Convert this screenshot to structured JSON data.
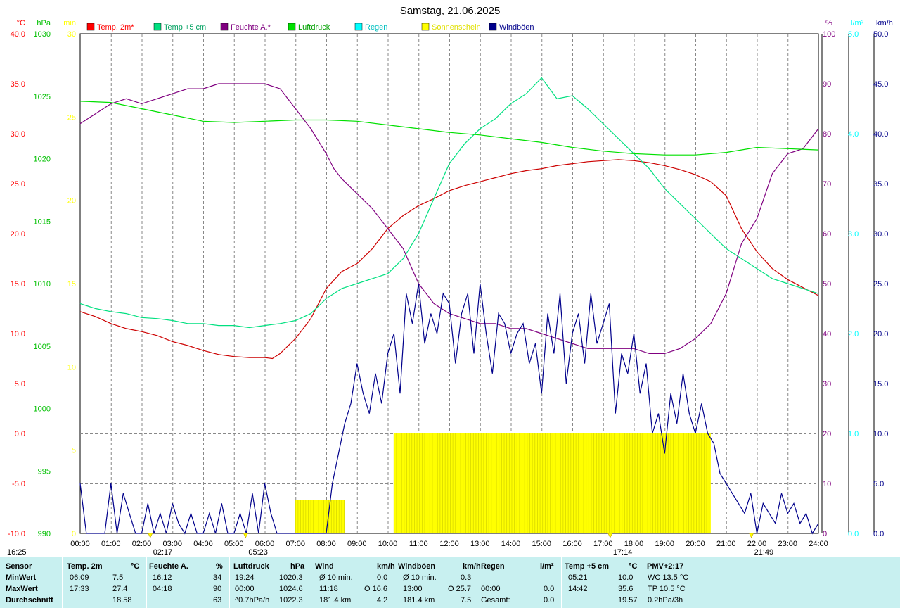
{
  "chart_data": {
    "type": "line",
    "title": "Samstag, 21.06.2025",
    "x_ticks": [
      "00:00",
      "01:00",
      "02:00",
      "03:00",
      "04:00",
      "05:00",
      "06:00",
      "07:00",
      "08:00",
      "09:00",
      "10:00",
      "11:00",
      "12:00",
      "13:00",
      "14:00",
      "15:00",
      "16:00",
      "17:00",
      "18:00",
      "19:00",
      "20:00",
      "21:00",
      "22:00",
      "23:00",
      "24:00"
    ],
    "xlim": [
      0,
      24
    ],
    "grid": true,
    "legend_position": "top",
    "axes": {
      "temp": {
        "unit": "°C",
        "color": "#ff0000",
        "min": -10,
        "max": 40,
        "ticks": [
          "40.0",
          "35.0",
          "30.0",
          "25.0",
          "20.0",
          "15.0",
          "10.0",
          "5.0",
          "0.0",
          "-5.0",
          "-10.0"
        ]
      },
      "press": {
        "unit": "hPa",
        "color": "#00c000",
        "min": 990,
        "max": 1030,
        "ticks": [
          "1030",
          "1025",
          "1020",
          "1015",
          "1010",
          "1005",
          "1000",
          "995",
          "990"
        ]
      },
      "sun": {
        "unit": "min",
        "color": "#ffff00",
        "min": 0,
        "max": 30,
        "ticks": [
          "30",
          "25",
          "20",
          "15",
          "10",
          "5",
          "0"
        ]
      },
      "hum": {
        "unit": "%",
        "color": "#800080",
        "min": 0,
        "max": 100,
        "ticks": [
          "100",
          "90",
          "80",
          "70",
          "60",
          "50",
          "40",
          "30",
          "20",
          "10",
          "0"
        ]
      },
      "rain": {
        "unit": "l/m²",
        "color": "#00ffff",
        "min": 0,
        "max": 5,
        "ticks": [
          "5.0",
          "4.0",
          "3.0",
          "2.0",
          "1.0",
          "0.0"
        ]
      },
      "wind": {
        "unit": "km/h",
        "color": "#00008b",
        "min": 0,
        "max": 50,
        "ticks": [
          "50.0",
          "45.0",
          "40.0",
          "35.0",
          "30.0",
          "25.0",
          "20.0",
          "15.0",
          "10.0",
          "5.0",
          "0.0"
        ]
      }
    },
    "legend": [
      {
        "label": "Temp. 2m*",
        "color": "#ff0000",
        "text_color": "#ff0000"
      },
      {
        "label": "Temp +5 cm",
        "color": "#00e080",
        "text_color": "#00a060"
      },
      {
        "label": "Feuchte A.*",
        "color": "#800080",
        "text_color": "#800080"
      },
      {
        "label": "Luftdruck",
        "color": "#00e000",
        "text_color": "#00a000"
      },
      {
        "label": "Regen",
        "color": "#00ffff",
        "text_color": "#00c0c0"
      },
      {
        "label": "Sonnenschein",
        "color": "#ffff00",
        "text_color": "#e0e000"
      },
      {
        "label": "Windböen",
        "color": "#00008b",
        "text_color": "#00008b"
      }
    ],
    "series": [
      {
        "name": "Temp. 2m*",
        "axis": "temp",
        "color": "#cc0000",
        "x": [
          0,
          0.5,
          1,
          1.5,
          2,
          2.5,
          3,
          3.5,
          4,
          4.5,
          5,
          5.5,
          6,
          6.25,
          6.5,
          7,
          7.5,
          8,
          8.5,
          9,
          9.5,
          10,
          10.5,
          11,
          11.5,
          12,
          12.5,
          13,
          13.5,
          14,
          14.5,
          15,
          15.5,
          16,
          16.5,
          17,
          17.5,
          18,
          18.5,
          19,
          19.5,
          20,
          20.5,
          21,
          21.5,
          22,
          22.5,
          23,
          23.5,
          24
        ],
        "y": [
          12.2,
          11.7,
          11.0,
          10.5,
          10.2,
          9.8,
          9.2,
          8.8,
          8.3,
          7.9,
          7.7,
          7.6,
          7.6,
          7.5,
          8.0,
          9.5,
          11.5,
          14.5,
          16.2,
          17.0,
          18.5,
          20.5,
          21.8,
          22.8,
          23.5,
          24.3,
          24.8,
          25.2,
          25.6,
          26.0,
          26.3,
          26.5,
          26.8,
          27.0,
          27.2,
          27.3,
          27.4,
          27.3,
          27.1,
          26.8,
          26.4,
          25.9,
          25.2,
          23.8,
          20.5,
          18.2,
          16.5,
          15.4,
          14.6,
          13.8
        ]
      },
      {
        "name": "Temp +5 cm",
        "axis": "temp",
        "color": "#00e080",
        "x": [
          0,
          0.5,
          1,
          1.5,
          2,
          2.5,
          3,
          3.5,
          4,
          4.5,
          5,
          5.5,
          6,
          6.5,
          7,
          7.5,
          8,
          8.5,
          9,
          9.5,
          10,
          10.5,
          11,
          11.5,
          12,
          12.5,
          13,
          13.5,
          14,
          14.5,
          15,
          15.5,
          16,
          16.5,
          17,
          17.5,
          18,
          18.5,
          19,
          19.5,
          20,
          20.5,
          21,
          21.5,
          22,
          22.5,
          23,
          23.5,
          24
        ],
        "y": [
          13.0,
          12.5,
          12.2,
          12.0,
          11.6,
          11.5,
          11.3,
          11.0,
          11.0,
          10.8,
          10.8,
          10.6,
          10.8,
          11.0,
          11.3,
          12.0,
          13.5,
          14.5,
          15.0,
          15.5,
          16.0,
          17.5,
          20.0,
          23.5,
          27.0,
          29.0,
          30.5,
          31.5,
          33.0,
          34.0,
          35.6,
          33.5,
          33.8,
          32.5,
          31.0,
          29.5,
          28.0,
          26.5,
          24.5,
          23.0,
          21.5,
          20.0,
          18.5,
          17.5,
          16.5,
          15.5,
          15.0,
          14.5,
          14.0
        ]
      },
      {
        "name": "Feuchte A.*",
        "axis": "hum",
        "color": "#800080",
        "x": [
          0,
          0.5,
          1,
          1.5,
          2,
          2.5,
          3,
          3.5,
          4,
          4.5,
          5,
          5.5,
          6,
          6.5,
          7,
          7.5,
          8,
          8.25,
          8.5,
          9,
          9.5,
          10,
          10.5,
          11,
          11.5,
          12,
          12.5,
          13,
          13.5,
          14,
          14.5,
          15,
          15.5,
          16,
          16.5,
          17,
          17.5,
          18,
          18.5,
          19,
          19.5,
          20,
          20.5,
          21,
          21.5,
          22,
          22.5,
          23,
          23.5,
          24
        ],
        "y": [
          82,
          84,
          86,
          87,
          86,
          87,
          88,
          89,
          89,
          90,
          90,
          90,
          90,
          89,
          85,
          81,
          76,
          73,
          71,
          68,
          65,
          61,
          57,
          50,
          46,
          44,
          43,
          42,
          42,
          41,
          41,
          40,
          39,
          38,
          37,
          37,
          37,
          37,
          36,
          36,
          37,
          39,
          42,
          48,
          58,
          63,
          72,
          76,
          77,
          81
        ]
      },
      {
        "name": "Luftdruck",
        "axis": "press",
        "color": "#00e000",
        "x": [
          0,
          1,
          2,
          3,
          4,
          5,
          6,
          7,
          8,
          9,
          10,
          11,
          12,
          13,
          14,
          15,
          16,
          17,
          18,
          19,
          20,
          21,
          22,
          23,
          24
        ],
        "y": [
          1024.6,
          1024.5,
          1024.0,
          1023.5,
          1023.0,
          1022.9,
          1023.0,
          1023.1,
          1023.1,
          1023.0,
          1022.7,
          1022.4,
          1022.1,
          1021.9,
          1021.6,
          1021.3,
          1020.9,
          1020.6,
          1020.4,
          1020.3,
          1020.3,
          1020.5,
          1020.9,
          1020.8,
          1020.7
        ]
      },
      {
        "name": "Windböen",
        "axis": "wind",
        "color": "#00008b",
        "x": [
          0,
          0.2,
          0.4,
          0.6,
          0.8,
          1,
          1.2,
          1.4,
          1.6,
          1.8,
          2,
          2.2,
          2.4,
          2.6,
          2.8,
          3,
          3.2,
          3.4,
          3.6,
          3.8,
          4,
          4.2,
          4.4,
          4.6,
          4.8,
          5,
          5.2,
          5.4,
          5.6,
          5.8,
          6,
          6.2,
          6.4,
          6.6,
          6.8,
          7,
          7.2,
          7.4,
          7.6,
          7.8,
          8,
          8.2,
          8.4,
          8.6,
          8.8,
          9,
          9.2,
          9.4,
          9.6,
          9.8,
          10,
          10.2,
          10.4,
          10.6,
          10.8,
          11,
          11.2,
          11.4,
          11.6,
          11.8,
          12,
          12.2,
          12.4,
          12.6,
          12.8,
          13,
          13.2,
          13.4,
          13.6,
          13.8,
          14,
          14.2,
          14.4,
          14.6,
          14.8,
          15,
          15.2,
          15.4,
          15.6,
          15.8,
          16,
          16.2,
          16.4,
          16.6,
          16.8,
          17,
          17.2,
          17.4,
          17.6,
          17.8,
          18,
          18.2,
          18.4,
          18.6,
          18.8,
          19,
          19.2,
          19.4,
          19.6,
          19.8,
          20,
          20.2,
          20.4,
          20.6,
          20.8,
          21,
          21.2,
          21.4,
          21.6,
          21.8,
          22,
          22.2,
          22.4,
          22.6,
          22.8,
          23,
          23.2,
          23.4,
          23.6,
          23.8,
          24
        ],
        "y": [
          5,
          0,
          0,
          0,
          0,
          5,
          0,
          4,
          2,
          0,
          0,
          3,
          0,
          2,
          0,
          3,
          1,
          0,
          2,
          0,
          0,
          2,
          0,
          3,
          0,
          0,
          2,
          0,
          4,
          0,
          5,
          2,
          0,
          0,
          0,
          0,
          0,
          0,
          0,
          0,
          0,
          5,
          8,
          11,
          13,
          17,
          14,
          12,
          16,
          13,
          18,
          20,
          14,
          24,
          21,
          25,
          19,
          22,
          20,
          24,
          23,
          17,
          22,
          24,
          18,
          25,
          20,
          16,
          22,
          21,
          18,
          20,
          21,
          17,
          19,
          14,
          22,
          18,
          24,
          15,
          20,
          22,
          17,
          24,
          19,
          21,
          23,
          12,
          18,
          16,
          20,
          14,
          17,
          10,
          12,
          8,
          14,
          11,
          16,
          12,
          10,
          13,
          10,
          9,
          6,
          5,
          4,
          3,
          2,
          4,
          0,
          3,
          2,
          1,
          4,
          2,
          3,
          1,
          2,
          0,
          1
        ]
      }
    ],
    "sunshine": {
      "name": "Sonnenschein",
      "axis": "sun",
      "blocks": [
        [
          7.0,
          8.6,
          2
        ],
        [
          10.2,
          20.5,
          6
        ]
      ]
    },
    "markers": [
      {
        "label": "02:17",
        "x": 2.28
      },
      {
        "label": "05:23",
        "x": 5.38
      },
      {
        "label": "17:14",
        "x": 17.23
      },
      {
        "label": "21:49",
        "x": 21.82
      }
    ],
    "corner_label": "16:25"
  },
  "stats": {
    "headers": [
      "Sensor",
      "Temp. 2m",
      "°C",
      "Feuchte A.",
      "%",
      "Luftdruck",
      "hPa",
      "Wind",
      "km/h",
      "Windböen",
      "km/h",
      "Regen",
      "l/m²",
      "Temp +5 cm",
      "°C",
      "PMV+2:17"
    ],
    "rows": [
      {
        "label": "MinWert",
        "t2_time": "06:09",
        "t2_val": "7.5",
        "h_time": "16:12",
        "h_val": "34",
        "p_time": "19:24",
        "p_val": "1020.3",
        "w_label": "Ø 10 min.",
        "w_val": "0.0",
        "g_label": "Ø 10 min.",
        "g_val": "0.3",
        "r_label": "",
        "r_val": "",
        "t5_time": "05:21",
        "t5_val": "10.0",
        "pmv": "WC 13.5 °C"
      },
      {
        "label": "MaxWert",
        "t2_time": "17:33",
        "t2_val": "27.4",
        "h_time": "04:18",
        "h_val": "90",
        "p_time": "00:00",
        "p_val": "1024.6",
        "w_label": "11:18",
        "w_dir": "O 16.6",
        "w_val": "",
        "g_label": "13:00",
        "g_dir": "O 25.7",
        "g_val": "",
        "r_label": "00:00",
        "r_val": "0.0",
        "t5_time": "14:42",
        "t5_val": "35.6",
        "pmv": "TP 10.5 °C"
      },
      {
        "label": "Durchschnitt",
        "t2_time": "",
        "t2_val": "18.58",
        "h_time": "",
        "h_val": "63",
        "p_time": "^0.7hPa/h",
        "p_val": "1022.3",
        "w_label": "181.4 km",
        "w_val": "4.2",
        "g_label": "181.4 km",
        "g_val": "7.5",
        "r_label": "Gesamt:",
        "r_val": "0.0",
        "t5_time": "",
        "t5_val": "19.57",
        "pmv": "0.2hPa/3h"
      }
    ]
  }
}
